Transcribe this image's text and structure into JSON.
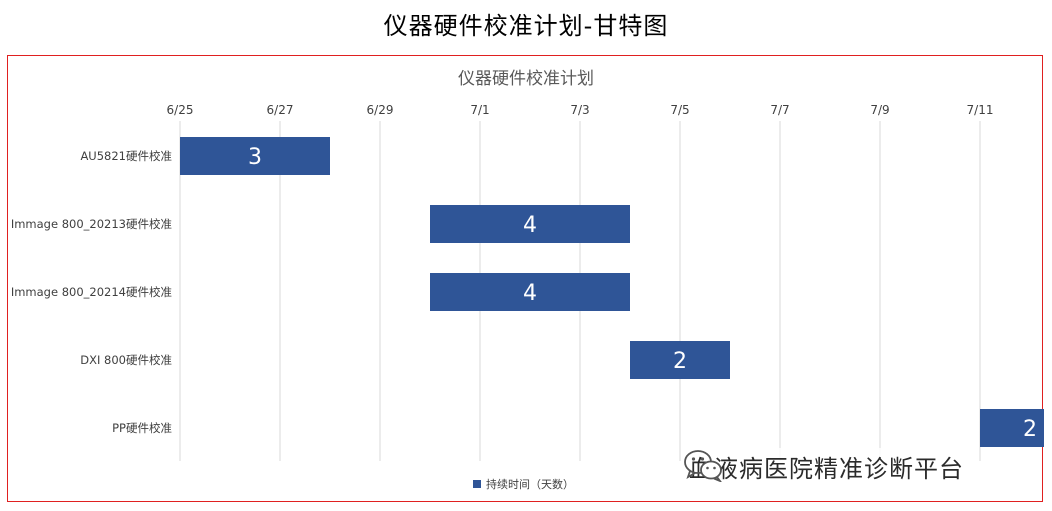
{
  "page_title": "仪器硬件校准计划-甘特图",
  "watermark": {
    "text": "血液病医院精准诊断平台",
    "icon": "wechat-icon"
  },
  "colors": {
    "bar": "#2f5597",
    "grid": "#d9d9d9",
    "border": "#e02020",
    "text": "#404040"
  },
  "chart_data": {
    "type": "bar",
    "orientation": "horizontal-gantt",
    "title": "仪器硬件校准计划",
    "x_ticks": [
      "6/25",
      "6/27",
      "6/29",
      "7/1",
      "7/3",
      "7/5",
      "7/7",
      "7/9",
      "7/11"
    ],
    "xlim": [
      "6/25",
      "7/12"
    ],
    "grid": true,
    "legend_position": "bottom",
    "categories": [
      "AU5821硬件校准",
      "Immage 800_20213硬件校准",
      "Immage 800_20214硬件校准",
      "DXI 800硬件校准",
      "PP硬件校准"
    ],
    "series": [
      {
        "name": "持续时间（天数）",
        "start": [
          "6/25",
          "6/30",
          "6/30",
          "7/4",
          "7/11"
        ],
        "values": [
          3,
          4,
          4,
          2,
          2
        ]
      }
    ]
  }
}
